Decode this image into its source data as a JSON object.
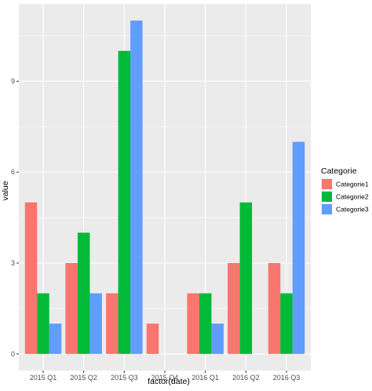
{
  "chart_data": {
    "type": "bar",
    "categories": [
      "2015 Q1",
      "2015 Q2",
      "2015 Q3",
      "2015 Q4",
      "2016 Q1",
      "2016 Q2",
      "2016 Q3"
    ],
    "series": [
      {
        "name": "Categorie1",
        "color": "#f8766d",
        "values": [
          5,
          3,
          2,
          1,
          2,
          3,
          3
        ]
      },
      {
        "name": "Categorie2",
        "color": "#00ba38",
        "values": [
          2,
          4,
          10,
          null,
          2,
          5,
          2
        ]
      },
      {
        "name": "Categorie3",
        "color": "#619cff",
        "values": [
          1,
          2,
          11,
          null,
          1,
          null,
          7
        ]
      }
    ],
    "xlabel": "factor(date)",
    "ylabel": "value",
    "yticks": [
      0,
      3,
      6,
      9
    ],
    "ylim": [
      0,
      11
    ],
    "legend_title": "Categorie",
    "legend_position": "right",
    "grid": true,
    "panel_background": "#ebebeb",
    "grid_color": "#ffffff"
  }
}
